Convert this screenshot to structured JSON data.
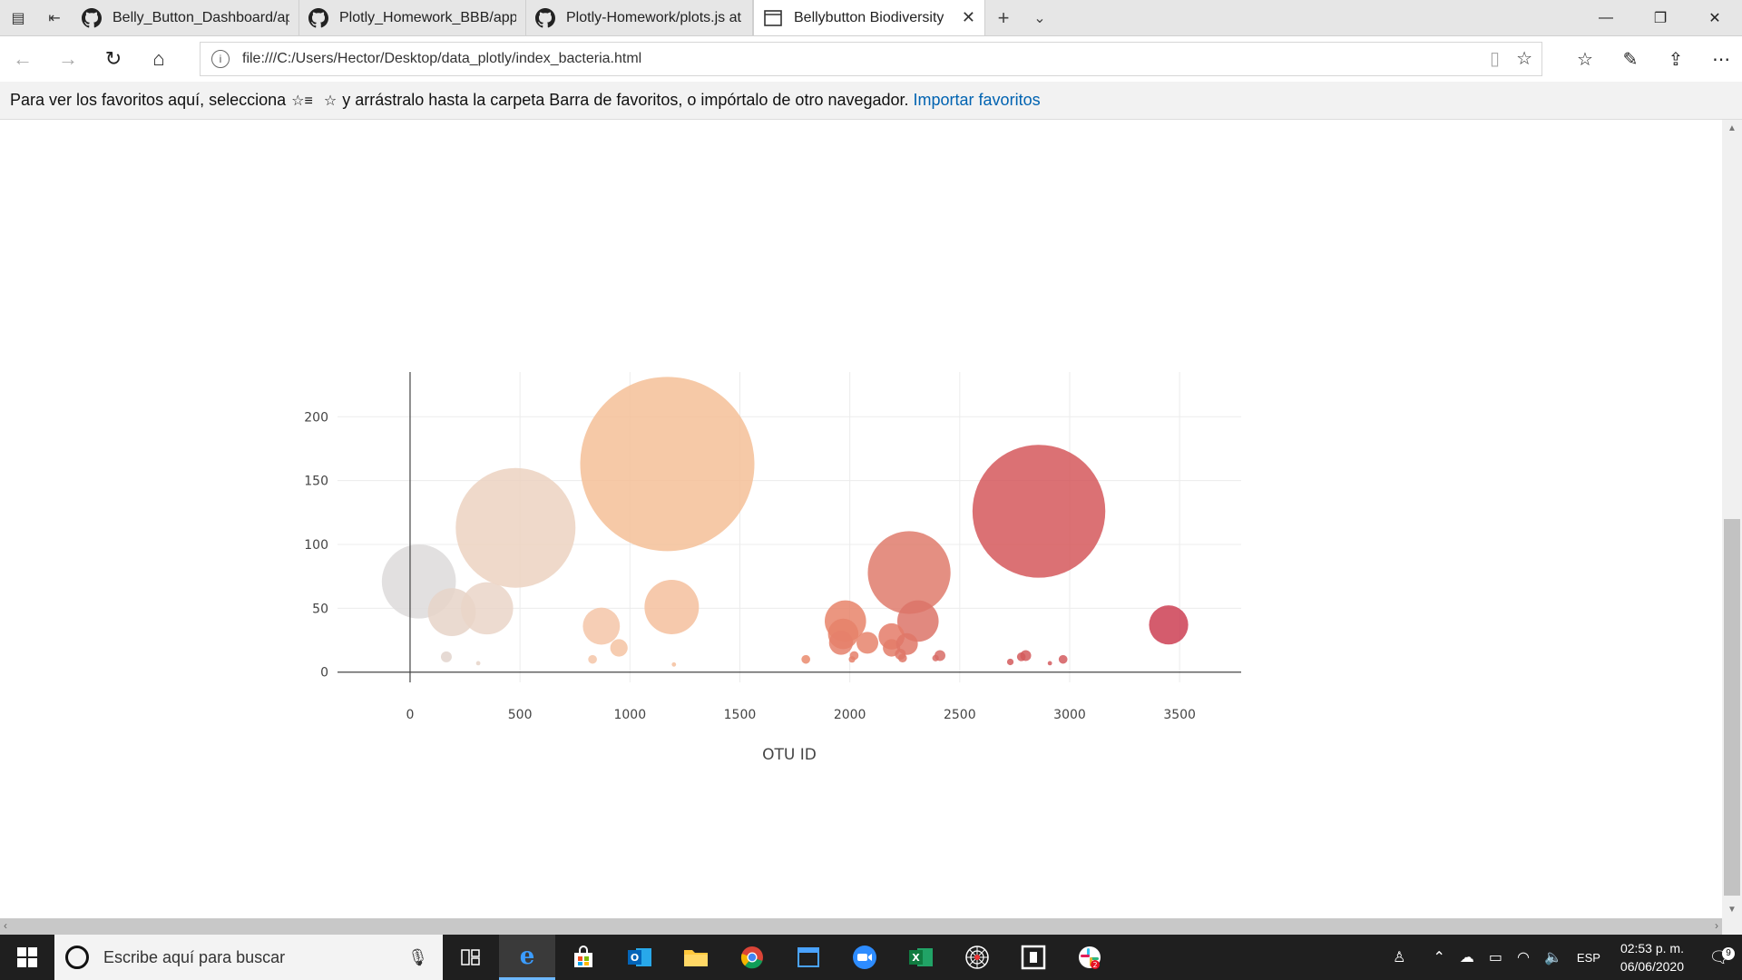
{
  "browser": {
    "tabs": [
      {
        "label": "Belly_Button_Dashboard/ap",
        "icon": "github-icon"
      },
      {
        "label": "Plotly_Homework_BBB/app.",
        "icon": "github-icon"
      },
      {
        "label": "Plotly-Homework/plots.js at",
        "icon": "github-icon"
      },
      {
        "label": "Bellybutton Biodiversity",
        "icon": "page-icon",
        "active": true
      }
    ],
    "url": "file:///C:/Users/Hector/Desktop/data_plotly/index_bacteria.html",
    "favorites_message": "Para ver los favoritos aquí, selecciona",
    "favorites_message_2": "y arrástralo hasta la carpeta Barra de favoritos, o impórtalo de otro navegador.",
    "favorites_link": "Importar favoritos"
  },
  "chart_data": {
    "type": "scatter",
    "subtype": "bubble",
    "xlabel": "OTU ID",
    "ylabel": "",
    "xlim": [
      -330,
      3780
    ],
    "ylim": [
      -8,
      235
    ],
    "xticks": [
      "0",
      "500",
      "1000",
      "1500",
      "2000",
      "2500",
      "3000",
      "3500"
    ],
    "yticks": [
      "0",
      "50",
      "100",
      "150",
      "200"
    ],
    "grid": true,
    "colorscale": "Earth",
    "points": [
      {
        "x": 40,
        "y": 71,
        "size": 34,
        "color": "#dddbdb"
      },
      {
        "x": 190,
        "y": 47,
        "size": 22,
        "color": "#e6d3c8"
      },
      {
        "x": 350,
        "y": 50,
        "size": 24,
        "color": "#ead5c8"
      },
      {
        "x": 480,
        "y": 113,
        "size": 55,
        "color": "#ecd2c1"
      },
      {
        "x": 1170,
        "y": 163,
        "size": 80,
        "color": "#f5bf98"
      },
      {
        "x": 1190,
        "y": 51,
        "size": 25,
        "color": "#f4c09d"
      },
      {
        "x": 870,
        "y": 36,
        "size": 17,
        "color": "#f4c6a8"
      },
      {
        "x": 950,
        "y": 19,
        "size": 8,
        "color": "#f4c3a2"
      },
      {
        "x": 165,
        "y": 12,
        "size": 5,
        "color": "#e2d4cc"
      },
      {
        "x": 310,
        "y": 7,
        "size": 2,
        "color": "#e6d3c8"
      },
      {
        "x": 830,
        "y": 10,
        "size": 4,
        "color": "#f4c6a8"
      },
      {
        "x": 1200,
        "y": 6,
        "size": 2,
        "color": "#f4c09d"
      },
      {
        "x": 1980,
        "y": 40,
        "size": 19,
        "color": "#e8846a"
      },
      {
        "x": 1970,
        "y": 30,
        "size": 14,
        "color": "#e6826a"
      },
      {
        "x": 1960,
        "y": 23,
        "size": 11,
        "color": "#e5806b"
      },
      {
        "x": 2080,
        "y": 23,
        "size": 10,
        "color": "#e6846c"
      },
      {
        "x": 2270,
        "y": 78,
        "size": 38,
        "color": "#df7b6c"
      },
      {
        "x": 2310,
        "y": 40,
        "size": 19,
        "color": "#dc7468"
      },
      {
        "x": 2190,
        "y": 28,
        "size": 12,
        "color": "#e47b69"
      },
      {
        "x": 2190,
        "y": 19,
        "size": 8,
        "color": "#e37c69"
      },
      {
        "x": 2260,
        "y": 22,
        "size": 10,
        "color": "#df7767"
      },
      {
        "x": 2230,
        "y": 14,
        "size": 5,
        "color": "#df7767"
      },
      {
        "x": 2240,
        "y": 11,
        "size": 4,
        "color": "#df7767"
      },
      {
        "x": 2020,
        "y": 13,
        "size": 4,
        "color": "#e5806b"
      },
      {
        "x": 2010,
        "y": 10,
        "size": 3,
        "color": "#e5806b"
      },
      {
        "x": 2410,
        "y": 13,
        "size": 5,
        "color": "#d86c66"
      },
      {
        "x": 2390,
        "y": 11,
        "size": 3,
        "color": "#d86c66"
      },
      {
        "x": 1800,
        "y": 10,
        "size": 4,
        "color": "#ea8b6d"
      },
      {
        "x": 2860,
        "y": 126,
        "size": 61,
        "color": "#d5585c"
      },
      {
        "x": 2800,
        "y": 13,
        "size": 5,
        "color": "#d45a5c"
      },
      {
        "x": 2780,
        "y": 12,
        "size": 4,
        "color": "#d45a5c"
      },
      {
        "x": 2730,
        "y": 8,
        "size": 3,
        "color": "#d45a5c"
      },
      {
        "x": 2970,
        "y": 10,
        "size": 4,
        "color": "#d35b5e"
      },
      {
        "x": 2910,
        "y": 7,
        "size": 2,
        "color": "#d35b5e"
      },
      {
        "x": 3450,
        "y": 37,
        "size": 18,
        "color": "#cc4054"
      }
    ]
  },
  "taskbar": {
    "search_placeholder": "Escribe aquí para buscar",
    "language": "ESP",
    "time": "02:53 p. m.",
    "date": "06/06/2020",
    "notification_count": "9",
    "app_badge": "2"
  }
}
